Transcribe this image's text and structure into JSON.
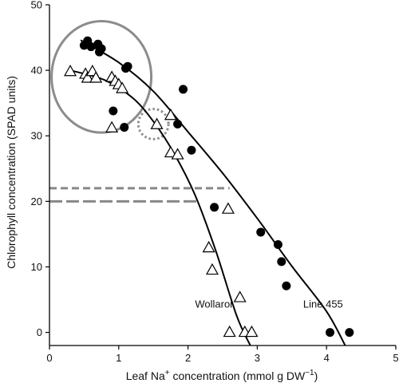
{
  "chart_data": {
    "type": "scatter",
    "xlabel_parts": [
      "Leaf Na",
      "+",
      " concentration (mmol g DW",
      "−1",
      ")"
    ],
    "ylabel": "Chlorophyll concentration (SPAD units)",
    "xlim": [
      0,
      5
    ],
    "ylim": [
      -2,
      50
    ],
    "x_ticks": [
      0,
      1,
      2,
      3,
      4,
      5
    ],
    "y_ticks": [
      0,
      10,
      20,
      30,
      40,
      50
    ],
    "grid": false,
    "series": [
      {
        "name": "Line 455",
        "marker": "filled-circle",
        "color": "#000000",
        "points": [
          [
            0.5,
            43.8
          ],
          [
            0.55,
            44.5
          ],
          [
            0.6,
            43.6
          ],
          [
            0.7,
            44.0
          ],
          [
            0.72,
            42.8
          ],
          [
            0.75,
            43.3
          ],
          [
            1.1,
            40.3
          ],
          [
            1.13,
            40.6
          ],
          [
            0.92,
            33.8
          ],
          [
            1.08,
            31.3
          ],
          [
            1.93,
            37.1
          ],
          [
            1.85,
            31.8
          ],
          [
            2.05,
            27.8
          ],
          [
            2.38,
            19.1
          ],
          [
            3.05,
            15.3
          ],
          [
            3.3,
            13.4
          ],
          [
            3.35,
            10.8
          ],
          [
            3.42,
            7.1
          ],
          [
            4.05,
            0
          ],
          [
            4.33,
            0
          ]
        ],
        "fit": [
          [
            0.45,
            44.6
          ],
          [
            1.0,
            41.2
          ],
          [
            1.5,
            36.8
          ],
          [
            2.0,
            30.6
          ],
          [
            2.5,
            24.3
          ],
          [
            3.0,
            17.4
          ],
          [
            3.5,
            10.1
          ],
          [
            4.0,
            3.2
          ],
          [
            4.27,
            -2
          ]
        ]
      },
      {
        "name": "Wollaroi",
        "marker": "open-triangle",
        "color": "#000000",
        "points": [
          [
            0.3,
            39.8
          ],
          [
            0.52,
            39.4
          ],
          [
            0.55,
            38.8
          ],
          [
            0.62,
            39.8
          ],
          [
            0.67,
            38.8
          ],
          [
            0.9,
            38.9
          ],
          [
            0.95,
            38.3
          ],
          [
            1.0,
            37.8
          ],
          [
            1.05,
            37.2
          ],
          [
            0.9,
            31.2
          ],
          [
            1.75,
            33.1
          ],
          [
            1.55,
            31.7
          ],
          [
            1.75,
            27.4
          ],
          [
            1.85,
            27.1
          ],
          [
            2.58,
            18.8
          ],
          [
            2.3,
            12.9
          ],
          [
            2.35,
            9.5
          ],
          [
            2.75,
            5.3
          ],
          [
            2.6,
            0
          ],
          [
            2.82,
            0
          ],
          [
            2.92,
            0
          ]
        ],
        "fit": [
          [
            0.3,
            40.0
          ],
          [
            0.8,
            38.5
          ],
          [
            1.2,
            35.8
          ],
          [
            1.5,
            32.2
          ],
          [
            1.8,
            27.3
          ],
          [
            2.1,
            21.0
          ],
          [
            2.4,
            12.5
          ],
          [
            2.7,
            2.6
          ],
          [
            2.9,
            -2
          ]
        ]
      }
    ],
    "annotations": [
      {
        "label": "Wollaroi",
        "x": 2.37,
        "y": 3.8
      },
      {
        "label": "Line 455",
        "x": 3.95,
        "y": 3.8
      }
    ],
    "reference_lines": [
      {
        "y": 22,
        "x_end": 2.6,
        "style": "dashed-short",
        "color": "#888888"
      },
      {
        "y": 20,
        "x_end": 2.15,
        "style": "dashed-long",
        "color": "#888888"
      }
    ],
    "highlight_ellipse": {
      "cx": 0.75,
      "cy": 39.0,
      "rx": 0.72,
      "ry": 8.5,
      "color": "#8c8c8c"
    },
    "highlight_circle": {
      "cx": 1.5,
      "cy": 31.8,
      "r": 2.3,
      "color": "#8c8c8c"
    }
  }
}
